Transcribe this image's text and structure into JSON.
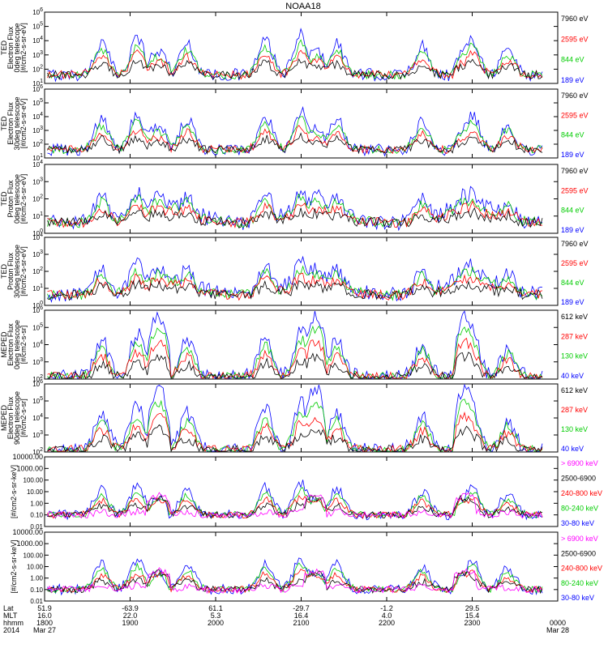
{
  "chart_data": {
    "type": "line",
    "title": "NOAA18",
    "panels": [
      {
        "ylabel": [
          "TED",
          "Electron Flux",
          "0deg telescope",
          "[#/cm2-s-sr-eV]"
        ],
        "ytick_labels": [
          "10^1",
          "10^2",
          "10^3",
          "10^4",
          "10^5",
          "10^6"
        ],
        "ylim": [
          1,
          6
        ],
        "yscale": "log",
        "series": [
          {
            "name": "7960 eV",
            "color": "#000000"
          },
          {
            "name": "2595 eV",
            "color": "#ff0000"
          },
          {
            "name": "844 eV",
            "color": "#00cc00"
          },
          {
            "name": "189 eV",
            "color": "#0000ff"
          }
        ],
        "legend_label_colors": [
          "#000000",
          "#ff0000",
          "#00cc00",
          "#0000ff"
        ]
      },
      {
        "ylabel": [
          "TED",
          "Electron Flux",
          "30deg telescope",
          "[#/cm2-s-sr-eV]"
        ],
        "ytick_labels": [
          "10^1",
          "10^2",
          "10^3",
          "10^4",
          "10^5",
          "10^6"
        ],
        "ylim": [
          1,
          6
        ],
        "yscale": "log",
        "series": [
          {
            "name": "7960 eV",
            "color": "#000000"
          },
          {
            "name": "2595 eV",
            "color": "#ff0000"
          },
          {
            "name": "844 eV",
            "color": "#00cc00"
          },
          {
            "name": "189 eV",
            "color": "#0000ff"
          }
        ],
        "legend_label_colors": [
          "#000000",
          "#ff0000",
          "#00cc00",
          "#0000ff"
        ]
      },
      {
        "ylabel": [
          "TED",
          "Proton Flux",
          "0deg telescope",
          "[#/cm2-s-sr-eV]"
        ],
        "ytick_labels": [
          "10^0",
          "10^1",
          "10^2",
          "10^3",
          "10^4"
        ],
        "ylim": [
          0,
          4
        ],
        "yscale": "log",
        "series": [
          {
            "name": "7960 eV",
            "color": "#000000"
          },
          {
            "name": "2595 eV",
            "color": "#ff0000"
          },
          {
            "name": "844 eV",
            "color": "#00cc00"
          },
          {
            "name": "189 eV",
            "color": "#0000ff"
          }
        ],
        "legend_label_colors": [
          "#000000",
          "#ff0000",
          "#00cc00",
          "#0000ff"
        ]
      },
      {
        "ylabel": [
          "TED",
          "Proton Flux",
          "30deg telescope",
          "[#/cm2-s-sr-eV]"
        ],
        "ytick_labels": [
          "10^0",
          "10^1",
          "10^2",
          "10^3",
          "10^4"
        ],
        "ylim": [
          0,
          4
        ],
        "yscale": "log",
        "series": [
          {
            "name": "7960 eV",
            "color": "#000000"
          },
          {
            "name": "2595 eV",
            "color": "#ff0000"
          },
          {
            "name": "844 eV",
            "color": "#00cc00"
          },
          {
            "name": "189 eV",
            "color": "#0000ff"
          }
        ],
        "legend_label_colors": [
          "#000000",
          "#ff0000",
          "#00cc00",
          "#0000ff"
        ]
      },
      {
        "ylabel": [
          "MEPED",
          "Electron Flux",
          "0deg telescope",
          "[#/cm2-s-sr]"
        ],
        "ytick_labels": [
          "10^2",
          "10^3",
          "10^4",
          "10^5",
          "10^6"
        ],
        "ylim": [
          2,
          6
        ],
        "yscale": "log",
        "series": [
          {
            "name": "612 keV",
            "color": "#000000"
          },
          {
            "name": "287 keV",
            "color": "#ff0000"
          },
          {
            "name": "130 keV",
            "color": "#00cc00"
          },
          {
            "name": "40 keV",
            "color": "#0000ff"
          }
        ],
        "legend_label_colors": [
          "#000000",
          "#ff0000",
          "#00cc00",
          "#0000ff"
        ]
      },
      {
        "ylabel": [
          "MEPED",
          "Electron Flux",
          "90deg telescope",
          "[#/cm2-s-sr]"
        ],
        "ytick_labels": [
          "10^2",
          "10^3",
          "10^4",
          "10^5",
          "10^6"
        ],
        "ylim": [
          2,
          6
        ],
        "yscale": "log",
        "series": [
          {
            "name": "612 keV",
            "color": "#000000"
          },
          {
            "name": "287 keV",
            "color": "#ff0000"
          },
          {
            "name": "130 keV",
            "color": "#00cc00"
          },
          {
            "name": "40 keV",
            "color": "#0000ff"
          }
        ],
        "legend_label_colors": [
          "#000000",
          "#ff0000",
          "#00cc00",
          "#0000ff"
        ]
      },
      {
        "ylabel": [
          "[#/cm2-s-sr-keV]"
        ],
        "ytick_labels": [
          "0.01",
          "0.10",
          "1.00",
          "10.00",
          "100.00",
          "1000.00",
          "10000.00"
        ],
        "ylim": [
          -2,
          4
        ],
        "yscale": "log",
        "series": [
          {
            "name": "> 6900 keV",
            "color": "#ff00ff"
          },
          {
            "name": "2500-6900",
            "color": "#000000"
          },
          {
            "name": "240-800 keV",
            "color": "#ff0000"
          },
          {
            "name": "80-240 keV",
            "color": "#00cc00"
          },
          {
            "name": "30-80 keV",
            "color": "#0000ff"
          }
        ],
        "legend_label_colors": [
          "#ff00ff",
          "#000000",
          "#ff0000",
          "#00cc00",
          "#0000ff"
        ]
      },
      {
        "ylabel": [
          "[#/cm2-s-sr-keV]"
        ],
        "ytick_labels": [
          "0.01",
          "0.10",
          "1.00",
          "10.00",
          "100.00",
          "1000.00",
          "10000.00"
        ],
        "ylim": [
          -2,
          4
        ],
        "yscale": "log",
        "series": [
          {
            "name": "> 6900 keV",
            "color": "#ff00ff"
          },
          {
            "name": "2500-6900",
            "color": "#000000"
          },
          {
            "name": "240-800 keV",
            "color": "#ff0000"
          },
          {
            "name": "80-240 keV",
            "color": "#00cc00"
          },
          {
            "name": "30-80 keV",
            "color": "#0000ff"
          }
        ],
        "legend_label_colors": [
          "#ff00ff",
          "#000000",
          "#ff0000",
          "#00cc00",
          "#0000ff"
        ]
      }
    ],
    "x_axis": {
      "row_labels": [
        "Lat",
        "MLT",
        "hhmm",
        "2014"
      ],
      "ticks": [
        {
          "lat": "51.9",
          "mlt": "16.0",
          "hhmm": "1800",
          "date": "Mar 27"
        },
        {
          "lat": "-63.9",
          "mlt": "22.0",
          "hhmm": "1900",
          "date": ""
        },
        {
          "lat": "61.1",
          "mlt": "5.3",
          "hhmm": "2000",
          "date": ""
        },
        {
          "lat": "-29.7",
          "mlt": "16.4",
          "hhmm": "2100",
          "date": ""
        },
        {
          "lat": "-1.2",
          "mlt": "4.0",
          "hhmm": "2200",
          "date": ""
        },
        {
          "lat": "29.5",
          "mlt": "15.4",
          "hhmm": "2300",
          "date": ""
        },
        {
          "lat": "",
          "mlt": "",
          "hhmm": "0000",
          "date": "Mar 28"
        }
      ]
    },
    "passes": [
      {
        "center_hhmm": "1840",
        "peak_log_flux_above_floor": 2.2
      },
      {
        "center_hhmm": "1905",
        "peak_log_flux_above_floor": 2.6
      },
      {
        "center_hhmm": "1940",
        "peak_log_flux_above_floor": 2.2
      },
      {
        "center_hhmm": "2035",
        "peak_log_flux_above_floor": 2.4
      },
      {
        "center_hhmm": "2100",
        "peak_log_flux_above_floor": 2.8
      },
      {
        "center_hhmm": "2125",
        "peak_log_flux_above_floor": 2.2
      },
      {
        "center_hhmm": "2225",
        "peak_log_flux_above_floor": 2.0
      },
      {
        "center_hhmm": "2300",
        "peak_log_flux_above_floor": 2.6
      },
      {
        "center_hhmm": "2325",
        "peak_log_flux_above_floor": 1.8
      }
    ],
    "saa_dome_centers_hhmm": [
      "1920",
      "2110",
      "2255"
    ]
  }
}
